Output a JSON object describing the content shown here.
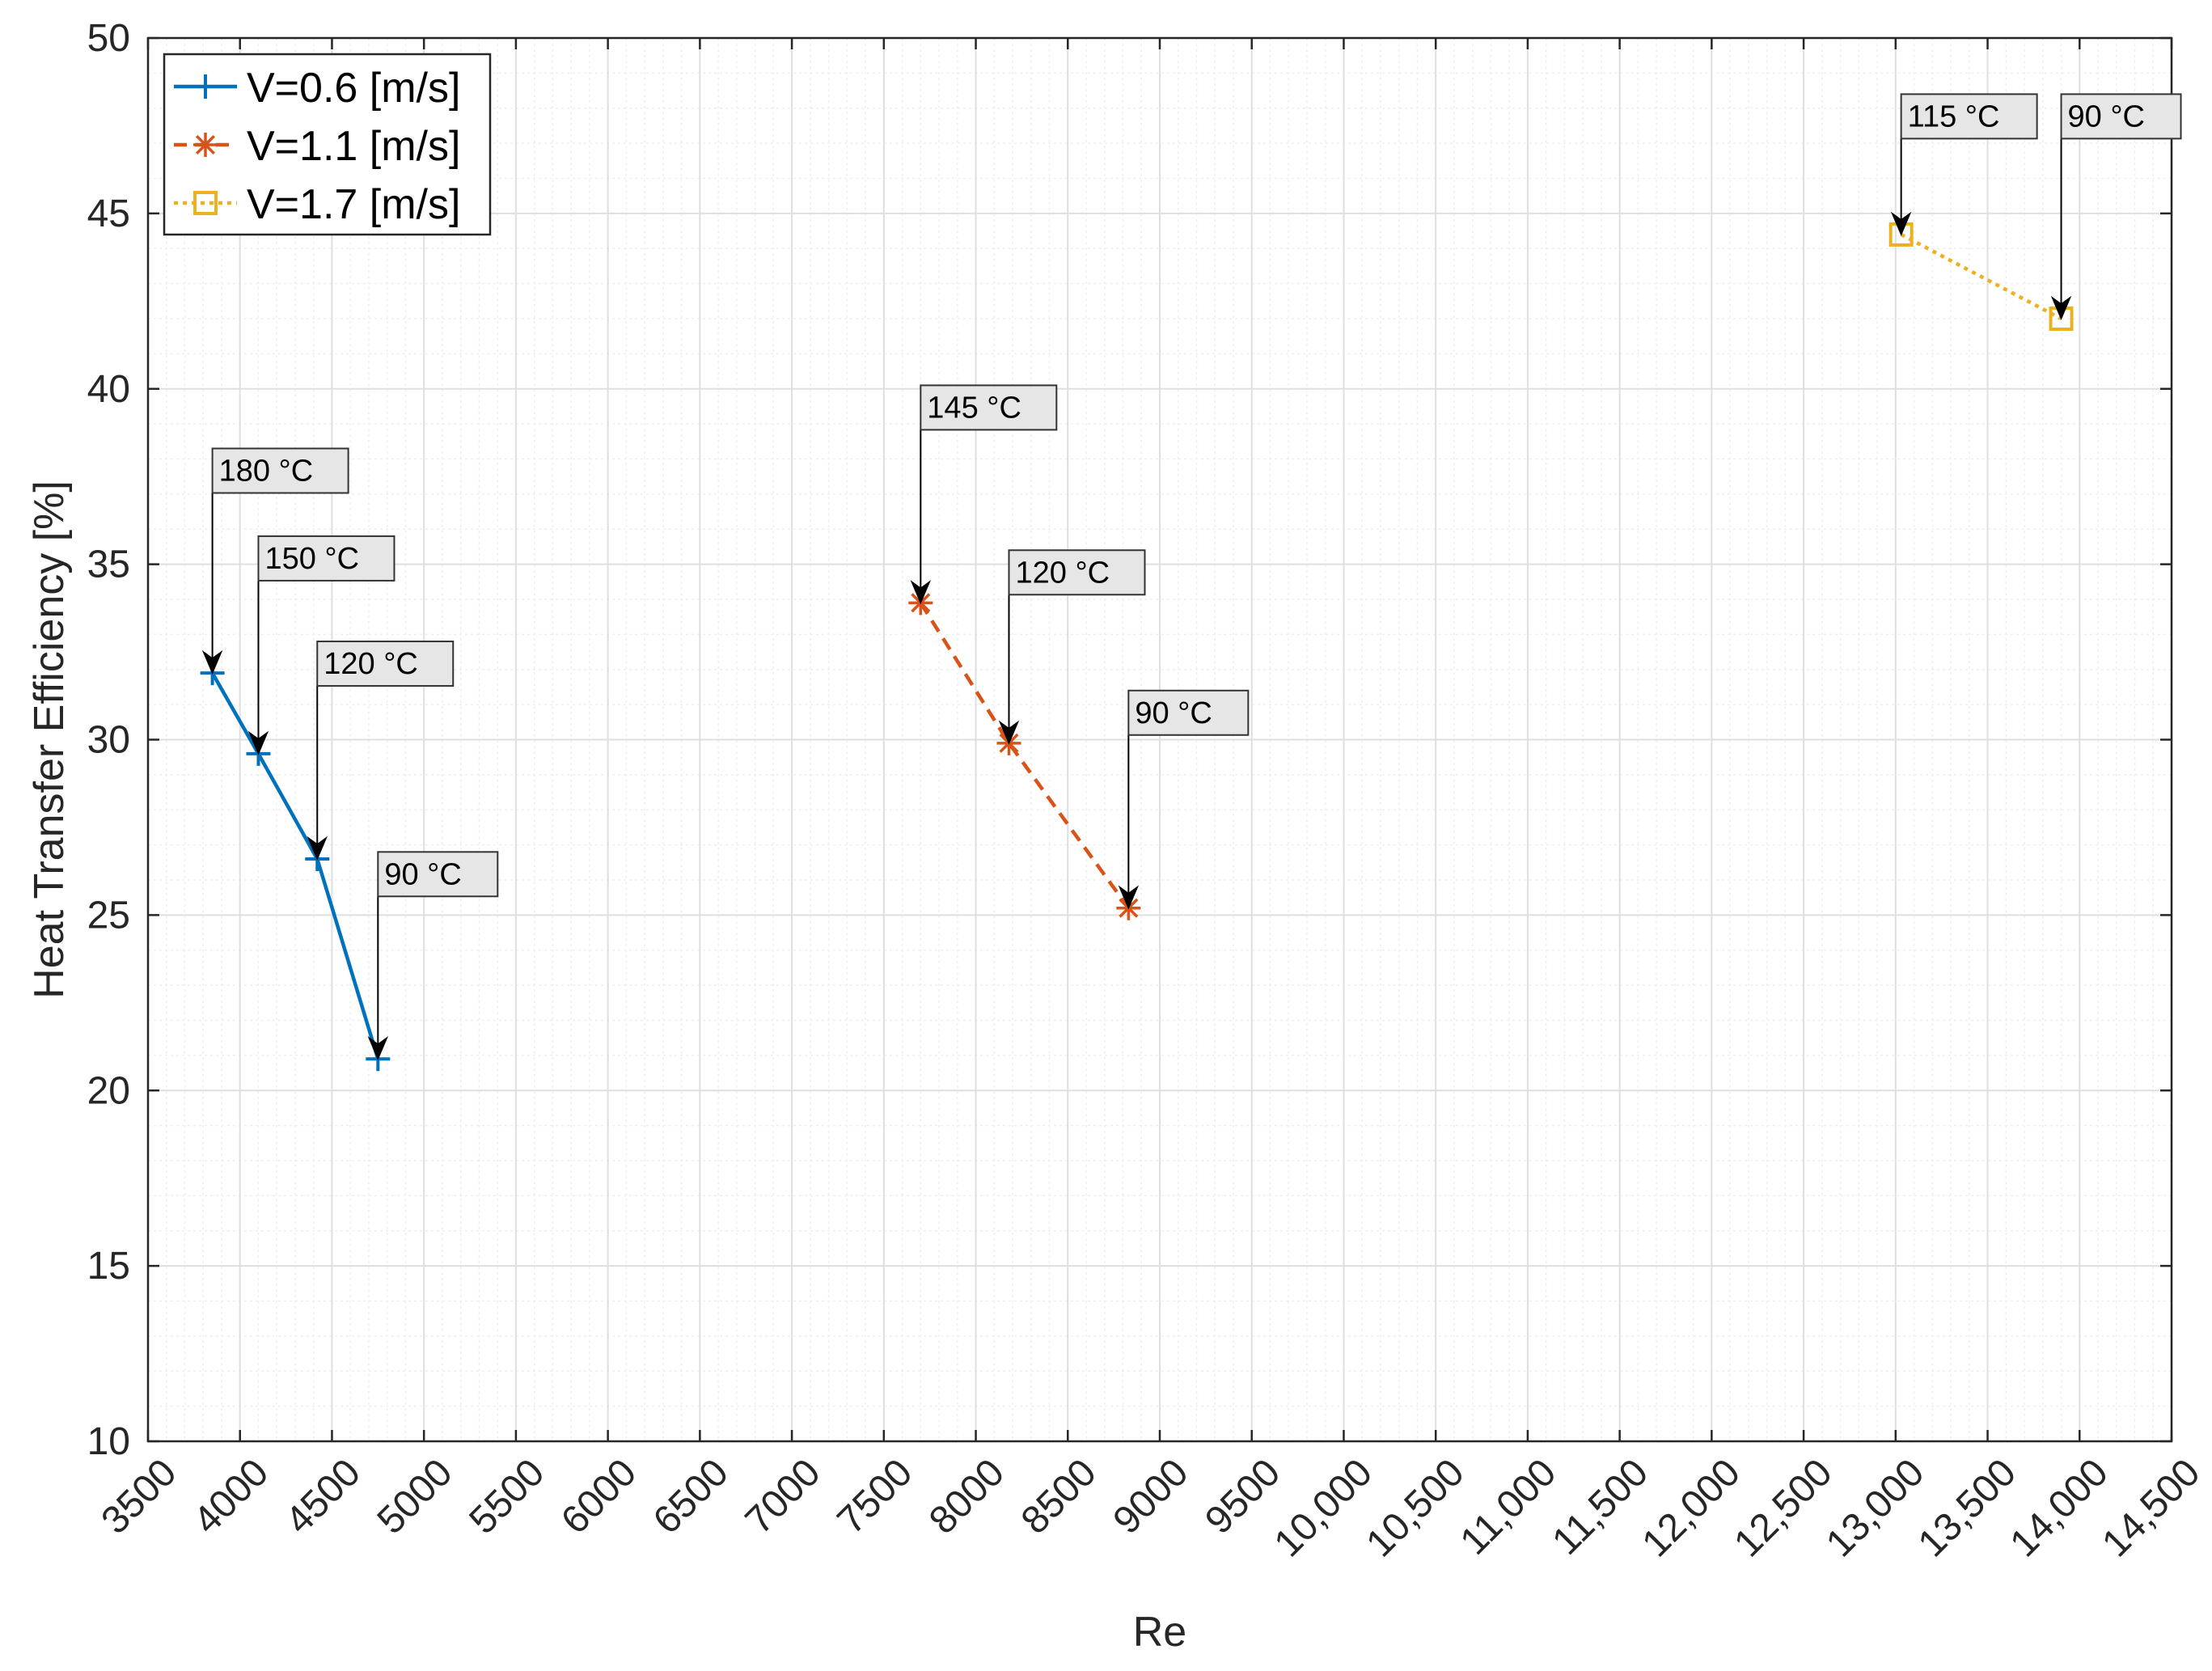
{
  "chart_data": {
    "type": "line",
    "title": "",
    "xlabel": "Re",
    "ylabel": "Heat Transfer Efficiency [%]",
    "xlim": [
      3500,
      14500
    ],
    "ylim": [
      10,
      50
    ],
    "grid": true,
    "minor_grid": true,
    "legend_position": "top-left",
    "x_ticks": [
      3500,
      4000,
      4500,
      5000,
      5500,
      6000,
      6500,
      7000,
      7500,
      8000,
      8500,
      9000,
      9500,
      10000,
      10500,
      11000,
      11500,
      12000,
      12500,
      13000,
      13500,
      14000,
      14500
    ],
    "x_tick_labels": [
      "3500",
      "4000",
      "4500",
      "5000",
      "5500",
      "6000",
      "6500",
      "7000",
      "7500",
      "8000",
      "8500",
      "9000",
      "9500",
      "10,000",
      "10,500",
      "11,000",
      "11,500",
      "12,000",
      "12,500",
      "13,000",
      "13,500",
      "14,000",
      "14,500"
    ],
    "y_ticks": [
      10,
      15,
      20,
      25,
      30,
      35,
      40,
      45,
      50
    ],
    "y_tick_labels": [
      "10",
      "15",
      "20",
      "25",
      "30",
      "35",
      "40",
      "45",
      "50"
    ],
    "series": [
      {
        "name": "V=0.6 [m/s]",
        "color": "#0072BD",
        "line_style": "solid",
        "marker": "plus",
        "x": [
          3850,
          4100,
          4420,
          4750
        ],
        "y": [
          31.9,
          29.6,
          26.6,
          20.9
        ]
      },
      {
        "name": "V=1.1 [m/s]",
        "color": "#D95319",
        "line_style": "dashed",
        "marker": "asterisk",
        "x": [
          7700,
          8180,
          8830
        ],
        "y": [
          33.9,
          29.9,
          25.2
        ]
      },
      {
        "name": "V=1.7 [m/s]",
        "color": "#EDB120",
        "line_style": "dotted",
        "marker": "square",
        "x": [
          13030,
          13900
        ],
        "y": [
          44.4,
          42.0
        ]
      }
    ],
    "annotations": [
      {
        "text": "180 °C",
        "x": 3850,
        "y": 31.9,
        "box_y": 38.3
      },
      {
        "text": "150 °C",
        "x": 4100,
        "y": 29.6,
        "box_y": 35.8
      },
      {
        "text": "120 °C",
        "x": 4420,
        "y": 26.6,
        "box_y": 32.8
      },
      {
        "text": "90 °C",
        "x": 4750,
        "y": 20.9,
        "box_y": 26.8
      },
      {
        "text": "145 °C",
        "x": 7700,
        "y": 33.9,
        "box_y": 40.1
      },
      {
        "text": "120 °C",
        "x": 8180,
        "y": 29.9,
        "box_y": 35.4
      },
      {
        "text": "90 °C",
        "x": 8830,
        "y": 25.2,
        "box_y": 31.4
      },
      {
        "text": "115 °C",
        "x": 13030,
        "y": 44.4,
        "box_y": 48.4
      },
      {
        "text": "90 °C",
        "x": 13900,
        "y": 42.0,
        "box_y": 48.4
      }
    ],
    "colors": {
      "axis": "#262626",
      "grid_major": "#dfdfdf",
      "grid_minor": "#efefef",
      "annotation_fill": "#e6e6e6",
      "annotation_border": "#333333"
    }
  }
}
